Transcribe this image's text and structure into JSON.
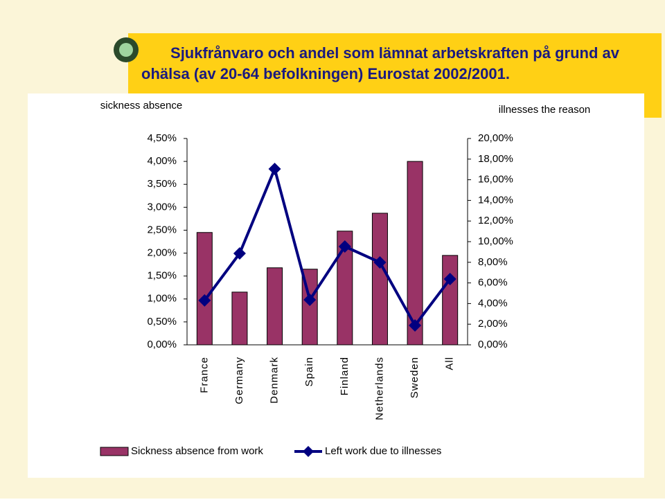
{
  "chart_data": {
    "type": "bar_line",
    "title": [
      "Sjukfrånvaro och andel som lämnat arbetskraften på grund av",
      "ohälsa (av 20-64 befolkningen) Eurostat 2002/2001."
    ],
    "y_axis_label": "sickness absence",
    "y2_axis_label": "illnesses the reason",
    "categories": [
      "France",
      "Germany",
      "Denmark",
      "Spain",
      "Finland",
      "Netherlands",
      "Sweden",
      "All"
    ],
    "series": [
      {
        "name": "Sickness absence from work",
        "color": "#993366",
        "type": "bar",
        "values": [
          2.45,
          1.15,
          1.68,
          1.65,
          2.48,
          2.87,
          4.0,
          1.95
        ]
      },
      {
        "name": "Left work due to illnesses",
        "color": "#000080",
        "type": "line",
        "axis": "y2",
        "values": [
          4.3,
          8.86,
          17.05,
          4.36,
          9.53,
          7.99,
          1.88,
          6.38
        ]
      }
    ],
    "ylim": [
      0,
      4.5
    ],
    "yticks": [
      {
        "value": 0,
        "label": "0,00%"
      },
      {
        "value": 0.5,
        "label": "0,50%"
      },
      {
        "value": 1,
        "label": "1,00%"
      },
      {
        "value": 1.5,
        "label": "1,50%"
      },
      {
        "value": 2,
        "label": "2,00%"
      },
      {
        "value": 2.5,
        "label": "2,50%"
      },
      {
        "value": 3,
        "label": "3,00%"
      },
      {
        "value": 3.5,
        "label": "3,50%"
      },
      {
        "value": 4,
        "label": "4,00%"
      },
      {
        "value": 4.5,
        "label": "4,50%"
      }
    ],
    "y2lim": [
      0,
      20
    ],
    "y2ticks": [
      {
        "value": 0,
        "label": "0,00%"
      },
      {
        "value": 2,
        "label": "2,00%"
      },
      {
        "value": 4,
        "label": "4,00%"
      },
      {
        "value": 6,
        "label": "6,00%"
      },
      {
        "value": 8,
        "label": "8,00%"
      },
      {
        "value": 10,
        "label": "10,00%"
      },
      {
        "value": 12,
        "label": "12,00%"
      },
      {
        "value": 14,
        "label": "14,00%"
      },
      {
        "value": 16,
        "label": "16,00%"
      },
      {
        "value": 18,
        "label": "18,00%"
      },
      {
        "value": 20,
        "label": "20,00%"
      }
    ]
  }
}
